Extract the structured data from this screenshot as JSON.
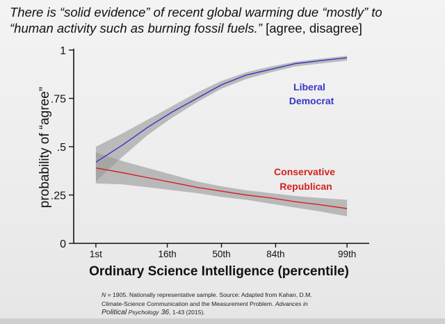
{
  "title": {
    "line1": "There is “solid evidence” of recent global warming due “mostly” to",
    "line2_quote": "“human activity such as burning fossil fuels.”",
    "line2_options": " [agree, disagree]"
  },
  "footnote": {
    "n_label": "N",
    "n_text": " = 1905. Nationally representative sample. Source: Adapted from Kahan, D.M.",
    "line2_a": "Climate-Science Communication and the Measurement Problem. ",
    "journal_a": "Advances in",
    "journal_b": "Political",
    "journal_c": " Psychology",
    "volume": " 36",
    "pages": ", 1-43 (2015)."
  },
  "chart_data": {
    "type": "line",
    "title": "There is “solid evidence” of recent global warming due “mostly” to “human activity such as burning fossil fuels.” [agree, disagree]",
    "xlabel": "Ordinary Science Intelligence  (percentile)",
    "ylabel": "probability of “agree”",
    "x_domain": [
      0,
      6
    ],
    "ylim": [
      0,
      1
    ],
    "x_ticks": [
      {
        "pos": 0.45,
        "label": "1st"
      },
      {
        "pos": 1.9,
        "label": "16th"
      },
      {
        "pos": 3.0,
        "label": "50th"
      },
      {
        "pos": 4.1,
        "label": "84th"
      },
      {
        "pos": 5.55,
        "label": "99th"
      }
    ],
    "y_ticks": [
      {
        "value": 0,
        "label": "0"
      },
      {
        "value": 0.25,
        "label": ".25"
      },
      {
        "value": 0.5,
        "label": ".5"
      },
      {
        "value": 0.75,
        "label": ".75"
      },
      {
        "value": 1,
        "label": "1"
      }
    ],
    "series": [
      {
        "name": "Liberal Democrat",
        "label_line1": "Liberal",
        "label_line2": "Democrat",
        "color": "#3535c8",
        "x": [
          0.45,
          1.0,
          1.5,
          2.0,
          2.5,
          3.0,
          3.5,
          4.0,
          4.5,
          5.0,
          5.55
        ],
        "y": [
          0.42,
          0.51,
          0.6,
          0.68,
          0.75,
          0.82,
          0.87,
          0.9,
          0.93,
          0.945,
          0.96
        ],
        "lower": [
          0.32,
          0.45,
          0.56,
          0.65,
          0.73,
          0.8,
          0.85,
          0.885,
          0.915,
          0.93,
          0.945
        ],
        "upper": [
          0.5,
          0.57,
          0.64,
          0.71,
          0.78,
          0.84,
          0.885,
          0.915,
          0.94,
          0.955,
          0.97
        ]
      },
      {
        "name": "Conservative Republican",
        "label_line1": "Conservative",
        "label_line2": "Republican",
        "color": "#d62020",
        "x": [
          0.45,
          1.0,
          1.5,
          2.0,
          2.5,
          3.0,
          3.5,
          4.0,
          4.5,
          5.0,
          5.55
        ],
        "y": [
          0.39,
          0.365,
          0.34,
          0.315,
          0.29,
          0.27,
          0.25,
          0.235,
          0.215,
          0.2,
          0.18
        ],
        "lower": [
          0.31,
          0.305,
          0.29,
          0.275,
          0.26,
          0.24,
          0.225,
          0.205,
          0.185,
          0.165,
          0.14
        ],
        "upper": [
          0.47,
          0.425,
          0.39,
          0.355,
          0.32,
          0.295,
          0.275,
          0.26,
          0.245,
          0.235,
          0.225
        ]
      }
    ]
  }
}
